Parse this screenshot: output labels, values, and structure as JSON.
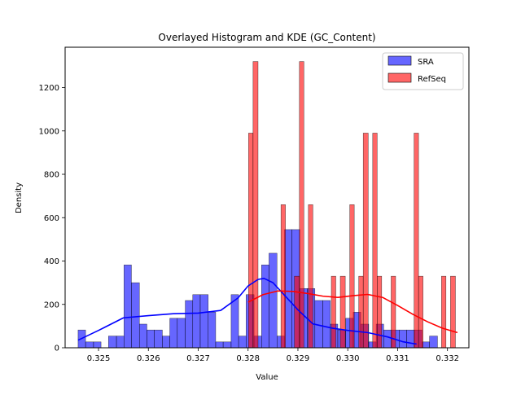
{
  "chart_data": {
    "type": "bar",
    "title": "Overlayed Histogram and KDE (GC_Content)",
    "xlabel": "Value",
    "ylabel": "Density",
    "xlim": [
      0.32433,
      0.33243
    ],
    "ylim": [
      0,
      1386
    ],
    "xticks": [
      "0.325",
      "0.326",
      "0.327",
      "0.328",
      "0.329",
      "0.330",
      "0.331",
      "0.332"
    ],
    "yticks": [
      "0",
      "200",
      "400",
      "600",
      "800",
      "1000",
      "1200"
    ],
    "legend_position": "top-right",
    "colors": {
      "SRA": "#0000ff",
      "RefSeq": "#ff0000"
    },
    "series": [
      {
        "name": "SRA",
        "type": "histogram",
        "bins": [
          [
            0.32459,
            0.32474,
            82
          ],
          [
            0.32474,
            0.3249,
            27
          ],
          [
            0.3249,
            0.32505,
            27
          ],
          [
            0.3252,
            0.32536,
            54
          ],
          [
            0.32536,
            0.32551,
            54
          ],
          [
            0.32551,
            0.32566,
            382
          ],
          [
            0.32566,
            0.32582,
            300
          ],
          [
            0.32582,
            0.32597,
            109
          ],
          [
            0.32597,
            0.32612,
            82
          ],
          [
            0.32612,
            0.32628,
            82
          ],
          [
            0.32628,
            0.32643,
            54
          ],
          [
            0.32643,
            0.32658,
            136
          ],
          [
            0.32658,
            0.32674,
            136
          ],
          [
            0.32674,
            0.32689,
            218
          ],
          [
            0.32689,
            0.32704,
            245
          ],
          [
            0.32704,
            0.3272,
            245
          ],
          [
            0.3272,
            0.32735,
            164
          ],
          [
            0.32735,
            0.3275,
            27
          ],
          [
            0.3275,
            0.32766,
            27
          ],
          [
            0.32766,
            0.32781,
            245
          ],
          [
            0.32781,
            0.32796,
            54
          ],
          [
            0.32796,
            0.32812,
            245
          ],
          [
            0.32812,
            0.32827,
            54
          ],
          [
            0.32827,
            0.32842,
            382
          ],
          [
            0.32842,
            0.32858,
            436
          ],
          [
            0.32858,
            0.32873,
            54
          ],
          [
            0.32873,
            0.32888,
            545
          ],
          [
            0.32888,
            0.32904,
            545
          ],
          [
            0.32904,
            0.32919,
            273
          ],
          [
            0.32919,
            0.32934,
            273
          ],
          [
            0.32934,
            0.3295,
            218
          ],
          [
            0.3295,
            0.32965,
            218
          ],
          [
            0.32965,
            0.3298,
            109
          ],
          [
            0.3298,
            0.32996,
            82
          ],
          [
            0.32996,
            0.33011,
            136
          ],
          [
            0.33011,
            0.33026,
            164
          ],
          [
            0.33026,
            0.33042,
            109
          ],
          [
            0.33042,
            0.33057,
            27
          ],
          [
            0.33057,
            0.33072,
            109
          ],
          [
            0.33072,
            0.33088,
            82
          ],
          [
            0.33088,
            0.33103,
            82
          ],
          [
            0.33103,
            0.33118,
            82
          ],
          [
            0.33118,
            0.33134,
            82
          ],
          [
            0.33134,
            0.33149,
            82
          ],
          [
            0.33149,
            0.33164,
            27
          ],
          [
            0.33164,
            0.3318,
            54
          ]
        ],
        "kde": {
          "x": [
            0.32459,
            0.325,
            0.3255,
            0.326,
            0.3265,
            0.327,
            0.32745,
            0.3278,
            0.328,
            0.3282,
            0.32832,
            0.3285,
            0.3287,
            0.329,
            0.3293,
            0.3297,
            0.33,
            0.3304,
            0.3308,
            0.3311,
            0.33138
          ],
          "y": [
            35,
            80,
            138,
            148,
            157,
            160,
            172,
            230,
            285,
            315,
            320,
            300,
            250,
            175,
            110,
            90,
            80,
            70,
            50,
            28,
            17
          ]
        }
      },
      {
        "name": "RefSeq",
        "type": "histogram",
        "bins": [
          [
            0.32801,
            0.3281,
            990
          ],
          [
            0.3281,
            0.3282,
            1320
          ],
          [
            0.3282,
            0.32829,
            0
          ],
          [
            0.32829,
            0.32838,
            0
          ],
          [
            0.32838,
            0.32847,
            0
          ],
          [
            0.32847,
            0.32856,
            0
          ],
          [
            0.32856,
            0.32866,
            0
          ],
          [
            0.32866,
            0.32875,
            660
          ],
          [
            0.32875,
            0.32884,
            0
          ],
          [
            0.32884,
            0.32893,
            0
          ],
          [
            0.32893,
            0.32903,
            330
          ],
          [
            0.32903,
            0.32912,
            1320
          ],
          [
            0.32912,
            0.32921,
            0
          ],
          [
            0.32921,
            0.3293,
            660
          ],
          [
            0.3293,
            0.32939,
            0
          ],
          [
            0.32939,
            0.32949,
            0
          ],
          [
            0.32949,
            0.32958,
            0
          ],
          [
            0.32958,
            0.32967,
            0
          ],
          [
            0.32967,
            0.32976,
            330
          ],
          [
            0.32976,
            0.32985,
            0
          ],
          [
            0.32985,
            0.32995,
            330
          ],
          [
            0.32995,
            0.33004,
            0
          ],
          [
            0.33004,
            0.33013,
            660
          ],
          [
            0.33013,
            0.33022,
            0
          ],
          [
            0.33022,
            0.33031,
            330
          ],
          [
            0.33031,
            0.33041,
            990
          ],
          [
            0.33041,
            0.3305,
            0
          ],
          [
            0.3305,
            0.33059,
            990
          ],
          [
            0.33059,
            0.33068,
            330
          ],
          [
            0.33068,
            0.33077,
            0
          ],
          [
            0.33077,
            0.33087,
            0
          ],
          [
            0.33087,
            0.33096,
            330
          ],
          [
            0.33096,
            0.33105,
            0
          ],
          [
            0.33105,
            0.33114,
            0
          ],
          [
            0.33114,
            0.33123,
            0
          ],
          [
            0.33123,
            0.33133,
            0
          ],
          [
            0.33133,
            0.33142,
            990
          ],
          [
            0.33142,
            0.33151,
            330
          ],
          [
            0.33151,
            0.3316,
            0
          ],
          [
            0.3316,
            0.3317,
            0
          ],
          [
            0.3317,
            0.33179,
            0
          ],
          [
            0.33179,
            0.33188,
            0
          ],
          [
            0.33188,
            0.33197,
            330
          ],
          [
            0.33197,
            0.33206,
            0
          ],
          [
            0.33206,
            0.33216,
            330
          ]
        ],
        "kde": {
          "x": [
            0.328,
            0.3283,
            0.3286,
            0.3289,
            0.3292,
            0.3295,
            0.3298,
            0.3301,
            0.3304,
            0.3307,
            0.331,
            0.3313,
            0.3316,
            0.3319,
            0.3322
          ],
          "y": [
            210,
            245,
            262,
            260,
            250,
            238,
            232,
            240,
            246,
            232,
            195,
            155,
            120,
            90,
            70
          ]
        }
      }
    ]
  }
}
